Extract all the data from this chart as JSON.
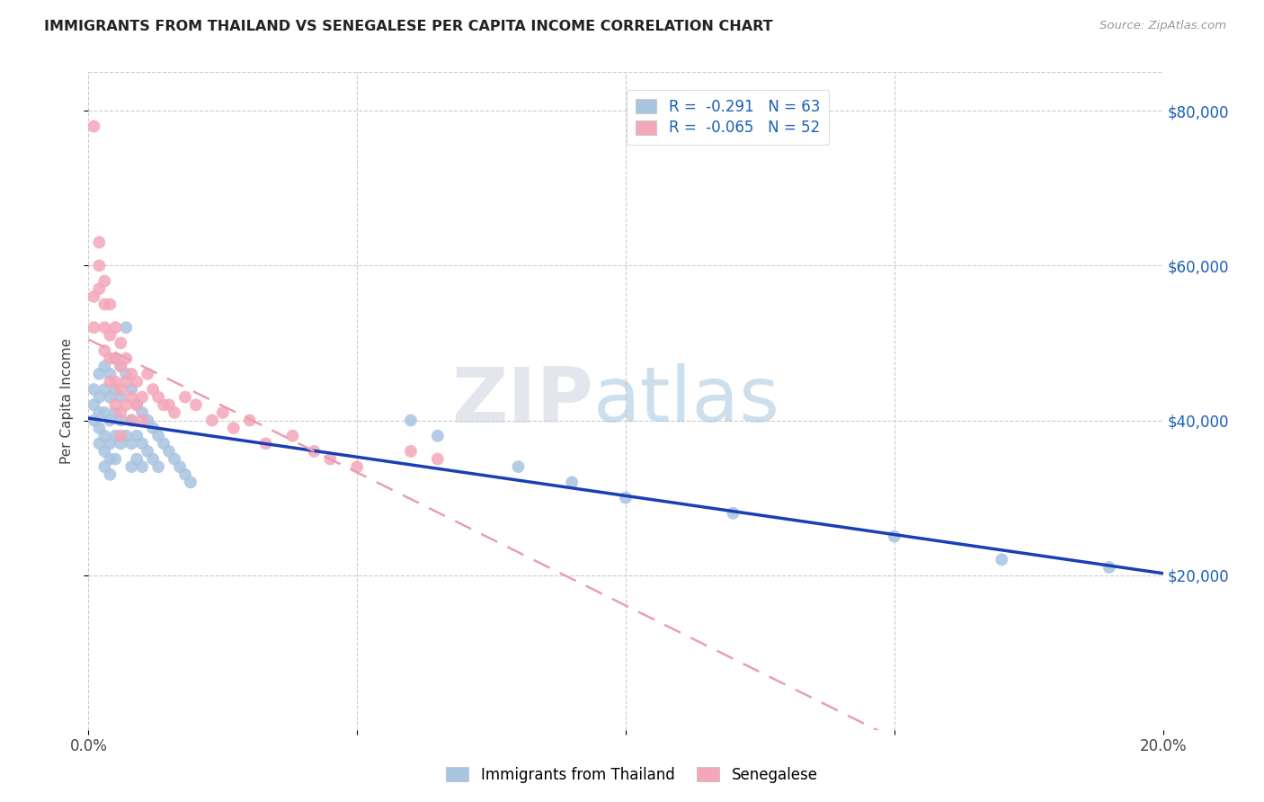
{
  "title": "IMMIGRANTS FROM THAILAND VS SENEGALESE PER CAPITA INCOME CORRELATION CHART",
  "source": "Source: ZipAtlas.com",
  "ylabel": "Per Capita Income",
  "x_min": 0.0,
  "x_max": 0.2,
  "y_min": 0,
  "y_max": 85000,
  "y_ticks": [
    20000,
    40000,
    60000,
    80000
  ],
  "x_ticks": [
    0.0,
    0.05,
    0.1,
    0.15,
    0.2
  ],
  "color_blue": "#a8c4e0",
  "color_pink": "#f4a7b9",
  "line_blue": "#1a3fb5",
  "line_pink": "#e8a0b0",
  "legend_R_blue": "-0.291",
  "legend_N_blue": "63",
  "legend_R_pink": "-0.065",
  "legend_N_pink": "52",
  "legend_label_blue": "Immigrants from Thailand",
  "legend_label_pink": "Senegalese",
  "watermark": "ZIPatlas",
  "blue_scatter_x": [
    0.001,
    0.001,
    0.001,
    0.002,
    0.002,
    0.002,
    0.002,
    0.002,
    0.003,
    0.003,
    0.003,
    0.003,
    0.003,
    0.003,
    0.004,
    0.004,
    0.004,
    0.004,
    0.004,
    0.004,
    0.005,
    0.005,
    0.005,
    0.005,
    0.005,
    0.006,
    0.006,
    0.006,
    0.006,
    0.007,
    0.007,
    0.007,
    0.008,
    0.008,
    0.008,
    0.008,
    0.009,
    0.009,
    0.009,
    0.01,
    0.01,
    0.01,
    0.011,
    0.011,
    0.012,
    0.012,
    0.013,
    0.013,
    0.014,
    0.015,
    0.016,
    0.017,
    0.018,
    0.019,
    0.06,
    0.065,
    0.08,
    0.09,
    0.1,
    0.12,
    0.15,
    0.17,
    0.19
  ],
  "blue_scatter_y": [
    44000,
    42000,
    40000,
    46000,
    43000,
    41000,
    39000,
    37000,
    47000,
    44000,
    41000,
    38000,
    36000,
    34000,
    46000,
    43000,
    40000,
    37000,
    35000,
    33000,
    48000,
    44000,
    41000,
    38000,
    35000,
    47000,
    43000,
    40000,
    37000,
    52000,
    46000,
    38000,
    44000,
    40000,
    37000,
    34000,
    42000,
    38000,
    35000,
    41000,
    37000,
    34000,
    40000,
    36000,
    39000,
    35000,
    38000,
    34000,
    37000,
    36000,
    35000,
    34000,
    33000,
    32000,
    40000,
    38000,
    34000,
    32000,
    30000,
    28000,
    25000,
    22000,
    21000
  ],
  "pink_scatter_x": [
    0.001,
    0.001,
    0.001,
    0.002,
    0.002,
    0.002,
    0.003,
    0.003,
    0.003,
    0.003,
    0.004,
    0.004,
    0.004,
    0.004,
    0.005,
    0.005,
    0.005,
    0.005,
    0.006,
    0.006,
    0.006,
    0.006,
    0.006,
    0.007,
    0.007,
    0.007,
    0.008,
    0.008,
    0.008,
    0.009,
    0.009,
    0.01,
    0.01,
    0.011,
    0.012,
    0.013,
    0.014,
    0.015,
    0.016,
    0.018,
    0.02,
    0.023,
    0.025,
    0.027,
    0.03,
    0.033,
    0.038,
    0.042,
    0.045,
    0.05,
    0.06,
    0.065
  ],
  "pink_scatter_y": [
    78000,
    56000,
    52000,
    63000,
    60000,
    57000,
    58000,
    55000,
    52000,
    49000,
    55000,
    51000,
    48000,
    45000,
    52000,
    48000,
    45000,
    42000,
    50000,
    47000,
    44000,
    41000,
    38000,
    48000,
    45000,
    42000,
    46000,
    43000,
    40000,
    45000,
    42000,
    43000,
    40000,
    46000,
    44000,
    43000,
    42000,
    42000,
    41000,
    43000,
    42000,
    40000,
    41000,
    39000,
    40000,
    37000,
    38000,
    36000,
    35000,
    34000,
    36000,
    35000
  ]
}
